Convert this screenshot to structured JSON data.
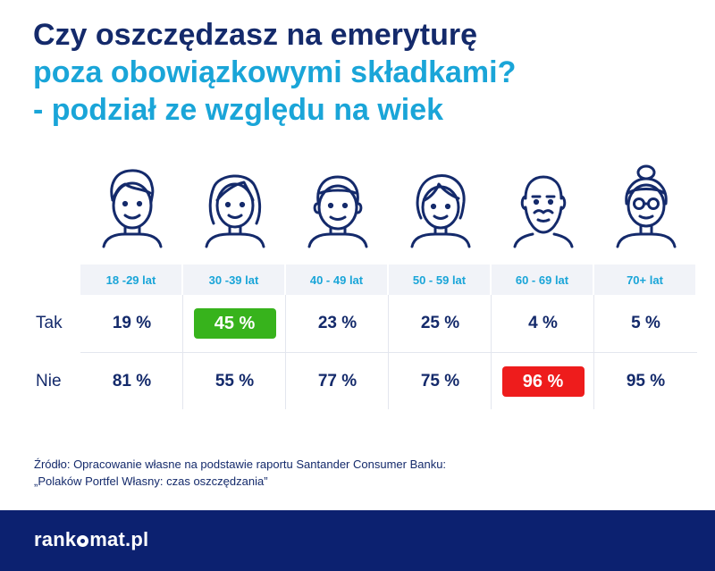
{
  "title": {
    "line1": "Czy oszczędzasz na emeryturę",
    "line2": "poza obowiązkowymi składkami?",
    "line3": "- podział ze względu na wiek"
  },
  "chart_data": {
    "type": "table",
    "columns": [
      "18 -29 lat",
      "30 -39 lat",
      "40 - 49 lat",
      "50 - 59 lat",
      "60 - 69 lat",
      "70+ lat"
    ],
    "rows": [
      {
        "label": "Tak",
        "values": [
          "19 %",
          "45 %",
          "23 %",
          "25 %",
          "4 %",
          "5 %"
        ],
        "highlight_index": 1,
        "highlight_color": "#37b31c"
      },
      {
        "label": "Nie",
        "values": [
          "81 %",
          "55 %",
          "77 %",
          "75 %",
          "96 %",
          "95 %"
        ],
        "highlight_index": 4,
        "highlight_color": "#ee1c1c"
      }
    ]
  },
  "icons": [
    "young-man-icon",
    "woman-icon",
    "middle-aged-man-icon",
    "older-woman-icon",
    "bearded-senior-man-icon",
    "senior-woman-with-glasses-icon"
  ],
  "source": {
    "line1": "Źródło: Opracowanie własne na podstawie raportu Santander Consumer Banku:",
    "line2": "„Polaków Portfel Własny: czas oszczędzania”"
  },
  "footer": {
    "logo_left": "rank",
    "logo_right": "mat.pl"
  },
  "colors": {
    "navy": "#142a6b",
    "cyan": "#1aa5d8",
    "footer": "#0c2170",
    "green": "#37b31c",
    "red": "#ee1c1c"
  }
}
